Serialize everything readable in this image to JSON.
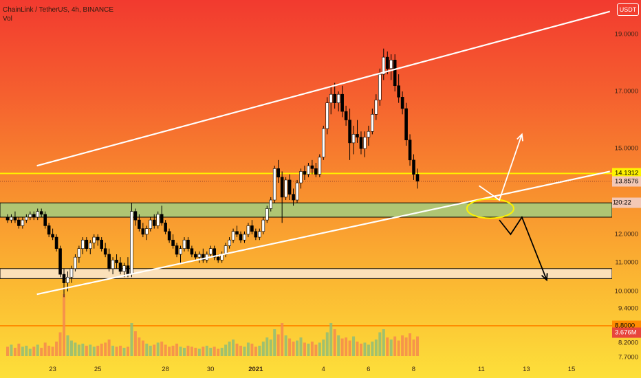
{
  "legend": {
    "symbol_line": "ChainLink / TetherUS, 4h, BINANCE",
    "vol_label": "Vol"
  },
  "currency_button": "USDT",
  "price_axis": {
    "ticks": [
      "19.0000",
      "17.0000",
      "15.0000",
      "12.0000",
      "11.0000",
      "10.0000",
      "9.4000",
      "8.2000",
      "7.7000"
    ],
    "tick_values": [
      19,
      17,
      15,
      12,
      11,
      10,
      9.4,
      8.2,
      7.7
    ],
    "labels": [
      {
        "text": "14.1312",
        "value": 14.1312,
        "bg": "#fff200",
        "fg": "#000000"
      },
      {
        "text": "13.8576",
        "value": 13.8576,
        "bg": "#f3c8b6",
        "fg": "#000000"
      },
      {
        "text": "20:22",
        "value": 13.1,
        "bg": "#f3c8b6",
        "fg": "#000000"
      },
      {
        "text": "8.8000",
        "value": 8.8,
        "bg": "#ff8c00",
        "fg": "#000000"
      },
      {
        "text": "3.676M",
        "value": 8.55,
        "bg": "#e8453c",
        "fg": "#ffffff"
      }
    ],
    "partial_tick": "1"
  },
  "time_axis": {
    "ticks": [
      {
        "label": "23",
        "day": 23,
        "bold": false
      },
      {
        "label": "25",
        "day": 25,
        "bold": false
      },
      {
        "label": "28",
        "day": 28,
        "bold": false
      },
      {
        "label": "30",
        "day": 30,
        "bold": false
      },
      {
        "label": "2021",
        "day": 32,
        "bold": true
      },
      {
        "label": "4",
        "day": 35,
        "bold": false
      },
      {
        "label": "6",
        "day": 37,
        "bold": false
      },
      {
        "label": "8",
        "day": 39,
        "bold": false
      },
      {
        "label": "11",
        "day": 42,
        "bold": false
      },
      {
        "label": "13",
        "day": 44,
        "bold": false
      },
      {
        "label": "15",
        "day": 46,
        "bold": false
      }
    ]
  },
  "chart_data": {
    "type": "candlestick",
    "symbol": "ChainLink / TetherUS",
    "interval": "4h",
    "exchange": "BINANCE",
    "price_range": [
      7.5,
      20.2
    ],
    "colors": {
      "up": "#ffffff",
      "down": "#000000",
      "vol_up": "#8fbd78",
      "vol_down": "#f58a4e"
    },
    "candles_start_day": 21.0,
    "candle_interval_days": 0.1667,
    "candles": [
      [
        12.6,
        12.7,
        12.4,
        12.5
      ],
      [
        12.5,
        12.7,
        12.4,
        12.6
      ],
      [
        12.6,
        12.8,
        12.4,
        12.5
      ],
      [
        12.5,
        12.6,
        12.2,
        12.3
      ],
      [
        12.3,
        12.6,
        12.2,
        12.5
      ],
      [
        12.5,
        12.7,
        12.4,
        12.6
      ],
      [
        12.6,
        12.8,
        12.5,
        12.7
      ],
      [
        12.7,
        12.8,
        12.5,
        12.6
      ],
      [
        12.6,
        12.9,
        12.5,
        12.8
      ],
      [
        12.8,
        12.9,
        12.6,
        12.7
      ],
      [
        12.7,
        12.8,
        12.2,
        12.3
      ],
      [
        12.3,
        12.4,
        11.9,
        12.0
      ],
      [
        12.0,
        12.2,
        11.8,
        11.9
      ],
      [
        11.9,
        12.0,
        11.4,
        11.5
      ],
      [
        11.5,
        11.6,
        10.5,
        10.6
      ],
      [
        10.6,
        10.8,
        9.8,
        10.3
      ],
      [
        10.3,
        10.7,
        10.0,
        10.5
      ],
      [
        10.5,
        10.9,
        10.3,
        10.8
      ],
      [
        10.8,
        11.3,
        10.7,
        11.2
      ],
      [
        11.2,
        11.6,
        11.0,
        11.5
      ],
      [
        11.5,
        11.9,
        11.3,
        11.8
      ],
      [
        11.8,
        11.9,
        11.4,
        11.5
      ],
      [
        11.5,
        11.8,
        11.3,
        11.7
      ],
      [
        11.7,
        12.0,
        11.5,
        11.9
      ],
      [
        11.9,
        12.0,
        11.6,
        11.8
      ],
      [
        11.8,
        11.9,
        11.4,
        11.5
      ],
      [
        11.5,
        11.7,
        11.2,
        11.3
      ],
      [
        11.3,
        11.5,
        10.7,
        10.8
      ],
      [
        10.8,
        11.2,
        10.6,
        11.1
      ],
      [
        11.1,
        11.3,
        10.8,
        11.0
      ],
      [
        11.0,
        11.2,
        10.6,
        10.7
      ],
      [
        10.7,
        11.0,
        10.5,
        10.9
      ],
      [
        10.9,
        11.2,
        10.5,
        10.6
      ],
      [
        10.6,
        13.1,
        10.5,
        12.8
      ],
      [
        12.8,
        12.9,
        12.3,
        12.5
      ],
      [
        12.5,
        12.7,
        12.1,
        12.2
      ],
      [
        12.2,
        12.4,
        11.9,
        12.0
      ],
      [
        12.0,
        12.3,
        11.8,
        12.2
      ],
      [
        12.2,
        12.6,
        12.1,
        12.5
      ],
      [
        12.5,
        12.7,
        12.2,
        12.3
      ],
      [
        12.3,
        12.8,
        12.2,
        12.7
      ],
      [
        12.7,
        13.0,
        12.3,
        12.4
      ],
      [
        12.4,
        12.5,
        12.0,
        12.1
      ],
      [
        12.1,
        12.2,
        11.7,
        11.8
      ],
      [
        11.8,
        12.0,
        11.5,
        11.6
      ],
      [
        11.6,
        11.7,
        11.2,
        11.3
      ],
      [
        11.3,
        11.6,
        11.0,
        11.5
      ],
      [
        11.5,
        11.9,
        11.4,
        11.8
      ],
      [
        11.8,
        11.9,
        11.4,
        11.5
      ],
      [
        11.5,
        11.6,
        11.2,
        11.3
      ],
      [
        11.3,
        11.4,
        11.1,
        11.2
      ],
      [
        11.2,
        11.4,
        11.0,
        11.3
      ],
      [
        11.3,
        11.5,
        11.0,
        11.1
      ],
      [
        11.1,
        11.4,
        11.0,
        11.3
      ],
      [
        11.3,
        11.6,
        11.2,
        11.5
      ],
      [
        11.5,
        11.6,
        11.1,
        11.2
      ],
      [
        11.2,
        11.3,
        11.0,
        11.1
      ],
      [
        11.1,
        11.4,
        11.0,
        11.3
      ],
      [
        11.3,
        11.7,
        11.2,
        11.6
      ],
      [
        11.6,
        11.9,
        11.5,
        11.8
      ],
      [
        11.8,
        12.2,
        11.7,
        12.1
      ],
      [
        12.1,
        12.3,
        11.9,
        12.0
      ],
      [
        12.0,
        12.1,
        11.7,
        11.8
      ],
      [
        11.8,
        12.1,
        11.7,
        12.0
      ],
      [
        12.0,
        12.4,
        11.9,
        12.3
      ],
      [
        12.3,
        12.5,
        12.0,
        12.1
      ],
      [
        12.1,
        12.2,
        11.8,
        11.9
      ],
      [
        11.9,
        12.2,
        11.8,
        12.1
      ],
      [
        12.1,
        12.6,
        12.0,
        12.5
      ],
      [
        12.5,
        13.0,
        12.4,
        12.9
      ],
      [
        12.9,
        13.3,
        12.8,
        13.2
      ],
      [
        13.2,
        14.4,
        13.1,
        14.3
      ],
      [
        14.3,
        14.6,
        13.8,
        14.0
      ],
      [
        14.0,
        14.2,
        12.4,
        13.3
      ],
      [
        13.3,
        14.0,
        13.2,
        13.9
      ],
      [
        13.9,
        14.1,
        13.2,
        13.4
      ],
      [
        13.4,
        13.6,
        13.0,
        13.2
      ],
      [
        13.2,
        13.9,
        13.1,
        13.8
      ],
      [
        13.8,
        14.3,
        13.6,
        14.2
      ],
      [
        14.2,
        14.4,
        13.9,
        14.1
      ],
      [
        14.1,
        14.5,
        14.0,
        14.4
      ],
      [
        14.4,
        14.6,
        14.1,
        14.3
      ],
      [
        14.3,
        14.5,
        14.0,
        14.1
      ],
      [
        14.1,
        14.8,
        14.0,
        14.7
      ],
      [
        14.7,
        15.8,
        14.6,
        15.7
      ],
      [
        15.7,
        16.8,
        15.5,
        16.6
      ],
      [
        16.6,
        17.2,
        16.2,
        16.9
      ],
      [
        16.9,
        17.3,
        16.4,
        16.6
      ],
      [
        16.6,
        17.0,
        16.3,
        16.9
      ],
      [
        16.9,
        17.2,
        16.1,
        16.3
      ],
      [
        16.3,
        16.5,
        15.8,
        16.0
      ],
      [
        16.0,
        16.4,
        14.6,
        15.2
      ],
      [
        15.2,
        15.8,
        14.8,
        15.5
      ],
      [
        15.5,
        16.0,
        15.2,
        15.4
      ],
      [
        15.4,
        15.6,
        14.8,
        15.0
      ],
      [
        15.0,
        15.6,
        14.7,
        15.4
      ],
      [
        15.4,
        15.8,
        15.1,
        15.6
      ],
      [
        15.6,
        16.4,
        15.5,
        16.2
      ],
      [
        16.2,
        16.9,
        16.0,
        16.7
      ],
      [
        16.7,
        17.8,
        16.5,
        17.6
      ],
      [
        17.6,
        18.5,
        17.4,
        18.2
      ],
      [
        18.2,
        18.4,
        17.6,
        17.8
      ],
      [
        17.8,
        18.3,
        17.4,
        18.1
      ],
      [
        18.1,
        18.3,
        17.0,
        17.2
      ],
      [
        17.2,
        17.6,
        16.6,
        16.8
      ],
      [
        16.8,
        17.0,
        16.2,
        16.4
      ],
      [
        16.4,
        16.6,
        15.1,
        15.3
      ],
      [
        15.3,
        15.5,
        14.4,
        14.6
      ],
      [
        14.6,
        14.8,
        13.9,
        14.1
      ],
      [
        14.1,
        14.3,
        13.6,
        13.86
      ]
    ],
    "volumes": [
      0.9,
      1.1,
      0.8,
      1.2,
      0.9,
      1.0,
      0.7,
      0.9,
      1.1,
      0.8,
      1.3,
      1.0,
      0.9,
      1.4,
      2.3,
      6.0,
      2.0,
      1.5,
      1.3,
      1.1,
      1.2,
      1.0,
      1.1,
      0.9,
      1.0,
      1.2,
      1.3,
      1.6,
      1.0,
      0.9,
      1.0,
      0.8,
      0.9,
      3.2,
      2.4,
      1.8,
      1.5,
      1.2,
      1.0,
      1.1,
      1.3,
      1.4,
      1.1,
      0.9,
      1.0,
      1.2,
      0.9,
      0.8,
      1.0,
      0.9,
      0.8,
      0.7,
      0.9,
      1.0,
      0.8,
      0.9,
      0.7,
      0.8,
      1.1,
      1.4,
      1.6,
      1.2,
      1.0,
      0.9,
      1.3,
      1.2,
      0.9,
      1.0,
      1.4,
      1.8,
      1.6,
      2.6,
      2.1,
      3.2,
      2.0,
      1.7,
      1.4,
      1.5,
      1.8,
      1.3,
      1.2,
      1.4,
      1.1,
      1.3,
      1.6,
      2.3,
      3.2,
      2.6,
      2.0,
      1.7,
      1.8,
      1.5,
      1.9,
      1.4,
      1.2,
      1.3,
      1.1,
      1.4,
      1.6,
      2.3,
      2.6,
      1.8,
      1.6,
      1.9,
      1.5,
      2.0,
      1.8,
      2.2,
      1.6,
      1.9
    ],
    "horizontal_lines": [
      {
        "value": 14.13,
        "color": "#fff200"
      },
      {
        "value": 8.8,
        "color": "#ff8c00"
      }
    ],
    "zones": [
      {
        "top": 13.1,
        "bottom": 12.6,
        "fill": "#a8c97a"
      },
      {
        "top": 10.8,
        "bottom": 10.45,
        "fill": "#fbe4c4"
      }
    ],
    "trendlines": [
      {
        "from": [
          22.3,
          14.4
        ],
        "to": [
          47.7,
          19.8
        ],
        "color": "#ffffff"
      },
      {
        "from": [
          22.3,
          9.9
        ],
        "to": [
          47.7,
          14.2
        ],
        "color": "#ffffff"
      }
    ],
    "projections": [
      {
        "points": [
          [
            41.9,
            13.7
          ],
          [
            42.8,
            13.2
          ],
          [
            43.8,
            15.5
          ]
        ],
        "color": "#ffffff"
      },
      {
        "points": [
          [
            42.8,
            12.5
          ],
          [
            43.3,
            12.0
          ],
          [
            43.8,
            12.6
          ],
          [
            44.9,
            10.4
          ]
        ],
        "color": "#000000"
      }
    ],
    "ellipse": {
      "center": [
        42.4,
        12.9
      ],
      "color": "#fff200"
    }
  }
}
